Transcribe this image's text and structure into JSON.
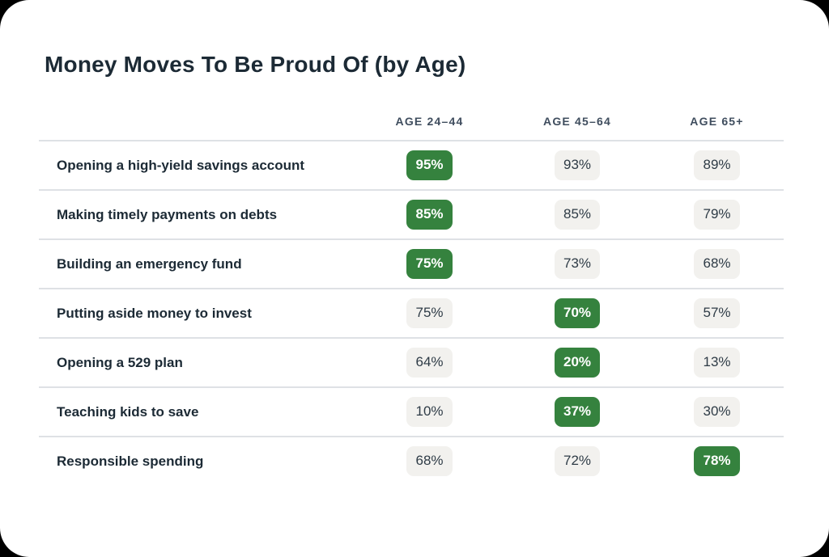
{
  "title": "Money Moves To Be Proud Of (by Age)",
  "colors": {
    "card_background": "#ffffff",
    "page_background": "#000000",
    "title_text": "#1c2a35",
    "header_text": "#3f4d5e",
    "divider": "#dee1e5",
    "badge_gray_background": "#f2f1ee",
    "badge_gray_text": "#2e3b46",
    "badge_highlight_green": "#35823e",
    "badge_highlight_text": "#ffffff"
  },
  "table": {
    "columns": [
      "AGE 24–44",
      "AGE 45–64",
      "AGE 65+"
    ],
    "rows": [
      {
        "label": "Opening a high-yield savings account",
        "values": [
          "95%",
          "93%",
          "89%"
        ],
        "highlight": 0
      },
      {
        "label": "Making timely payments on debts",
        "values": [
          "85%",
          "85%",
          "79%"
        ],
        "highlight": 0
      },
      {
        "label": "Building an emergency fund",
        "values": [
          "75%",
          "73%",
          "68%"
        ],
        "highlight": 0
      },
      {
        "label": "Putting aside money to invest",
        "values": [
          "75%",
          "70%",
          "57%"
        ],
        "highlight": 1
      },
      {
        "label": "Opening a 529 plan",
        "values": [
          "64%",
          "20%",
          "13%"
        ],
        "highlight": 1
      },
      {
        "label": "Teaching kids to save",
        "values": [
          "10%",
          "37%",
          "30%"
        ],
        "highlight": 1
      },
      {
        "label": "Responsible spending",
        "values": [
          "68%",
          "72%",
          "78%"
        ],
        "highlight": 2
      }
    ]
  },
  "chart_data": {
    "type": "table",
    "title": "Money Moves To Be Proud Of (by Age)",
    "columns": [
      "AGE 24–44",
      "AGE 45–64",
      "AGE 65+"
    ],
    "row_labels": [
      "Opening a high-yield savings account",
      "Making timely payments on debts",
      "Building an emergency fund",
      "Putting aside money to invest",
      "Opening a 529 plan",
      "Teaching kids to save",
      "Responsible spending"
    ],
    "values_percent": [
      [
        95,
        93,
        89
      ],
      [
        85,
        85,
        79
      ],
      [
        75,
        73,
        68
      ],
      [
        75,
        70,
        57
      ],
      [
        64,
        20,
        13
      ],
      [
        10,
        37,
        30
      ],
      [
        68,
        72,
        78
      ]
    ],
    "highlighted_column_per_row": [
      0,
      0,
      0,
      1,
      1,
      1,
      2
    ],
    "highlight_color": "#35823e",
    "legend_position": "none",
    "grid": "row-dividers"
  }
}
